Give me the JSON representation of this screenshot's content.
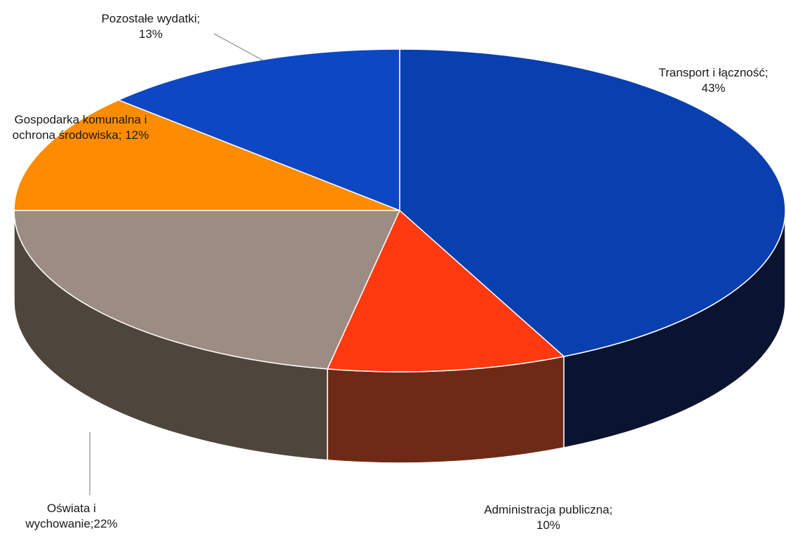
{
  "chart_data": {
    "type": "pie",
    "title": "",
    "style": "3d",
    "legend": "none",
    "slices": [
      {
        "label": "Transport i łączność;",
        "value": 43,
        "value_text": "43%",
        "color": "#0a3fb0",
        "side_color": "#0a1330"
      },
      {
        "label": "Administracja publiczna;",
        "value": 10,
        "value_text": "10%",
        "color": "#ff3a10",
        "side_color": "#6e2a16"
      },
      {
        "label": "Oświata i wychowanie;",
        "value": 22,
        "value_text": "22%",
        "color": "#9c8c84",
        "side_color": "#4e463c"
      },
      {
        "label": "Gospodarka komunalna i ochrona środowiska;",
        "value": 12,
        "value_text": "12%",
        "color": "#ff8c00",
        "side_color": "#8a4c00"
      },
      {
        "label": "Pozostałe wydatki;",
        "value": 13,
        "value_text": "13%",
        "color": "#0d47c4",
        "side_color": "#0a2a70"
      }
    ]
  }
}
